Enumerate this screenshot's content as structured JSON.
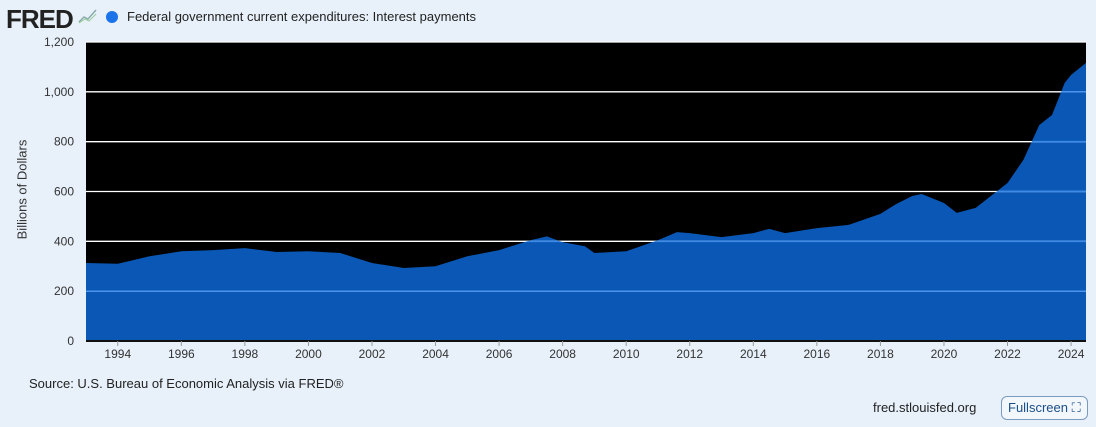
{
  "header": {
    "logo": "FRED",
    "legend": "Federal government current expenditures: Interest payments"
  },
  "footer": {
    "source": "Source: U.S. Bureau of Economic Analysis via FRED®",
    "site": "fred.stlouisfed.org",
    "fullscreen": "Fullscreen"
  },
  "colors": {
    "fill": "#0a57b5",
    "background": "#000000",
    "grid": "#ffffff",
    "series": "#1a73e8"
  },
  "chart_data": {
    "type": "area",
    "title": "Federal government current expenditures: Interest payments",
    "ylabel": "Billions of Dollars",
    "xlabel": "",
    "ylim": [
      0,
      1200
    ],
    "xlim": [
      1993.0,
      2024.47
    ],
    "yticks": [
      "0",
      "200",
      "400",
      "600",
      "800",
      "1,000",
      "1,200"
    ],
    "xticks": [
      "1994",
      "1996",
      "1998",
      "2000",
      "2002",
      "2004",
      "2006",
      "2008",
      "2010",
      "2012",
      "2014",
      "2016",
      "2018",
      "2020",
      "2022",
      "2024"
    ],
    "x": [
      1993,
      1994,
      1995,
      1996,
      1997,
      1998,
      1999,
      2000,
      2001,
      2002,
      2003,
      2004,
      2005,
      2006,
      2007,
      2007.5,
      2008,
      2008.7,
      2009,
      2010,
      2011,
      2011.6,
      2012,
      2013,
      2014,
      2014.5,
      2015,
      2016,
      2017,
      2018,
      2018.5,
      2019,
      2019.3,
      2020,
      2020.4,
      2021,
      2022,
      2022.5,
      2023,
      2023.4,
      2023.8,
      2024,
      2024.47
    ],
    "y": [
      313,
      310,
      340,
      360,
      365,
      373,
      357,
      360,
      353,
      313,
      293,
      300,
      340,
      365,
      405,
      420,
      397,
      380,
      353,
      360,
      405,
      437,
      433,
      417,
      433,
      450,
      433,
      453,
      466,
      510,
      550,
      582,
      590,
      554,
      514,
      534,
      634,
      727,
      867,
      907,
      1036,
      1068,
      1116
    ],
    "grid": true,
    "legend": "top-left"
  }
}
